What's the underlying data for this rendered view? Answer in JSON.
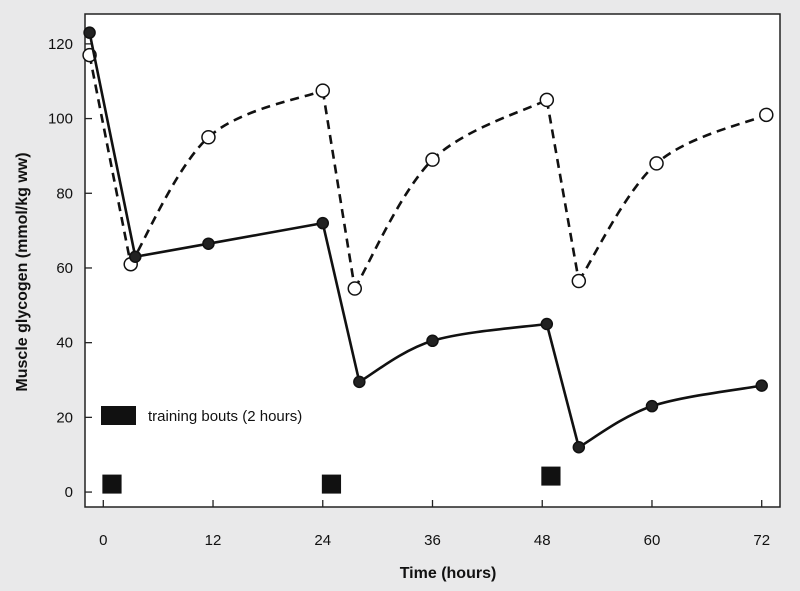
{
  "chart_data": {
    "type": "line",
    "xlabel": "Time (hours)",
    "ylabel": "Muscle glycogen (mmol/kg ww)",
    "x_ticks": [
      0,
      12,
      24,
      36,
      48,
      60,
      72
    ],
    "y_ticks": [
      0,
      20,
      40,
      60,
      80,
      100,
      120
    ],
    "xlim": [
      -2,
      74
    ],
    "ylim": [
      -4,
      128
    ],
    "grid": false,
    "legend": {
      "label": "training bouts (2 hours)",
      "placement": "bottom-left"
    },
    "training_bouts": [
      {
        "start": 0,
        "end": 2
      },
      {
        "start": 24,
        "end": 26
      },
      {
        "start": 48,
        "end": 50
      }
    ],
    "series": [
      {
        "style": "solid-filled",
        "points": [
          {
            "x": -1.5,
            "y": 123
          },
          {
            "x": 3.5,
            "y": 63
          },
          {
            "x": 11.5,
            "y": 66.5
          },
          {
            "x": 24,
            "y": 72
          },
          {
            "x": 28,
            "y": 29.5
          },
          {
            "x": 36,
            "y": 40.5
          },
          {
            "x": 48.5,
            "y": 45
          },
          {
            "x": 52,
            "y": 12
          },
          {
            "x": 60,
            "y": 23
          },
          {
            "x": 72,
            "y": 28.5
          }
        ]
      },
      {
        "style": "dashed-open",
        "points": [
          {
            "x": -1.5,
            "y": 117
          },
          {
            "x": 3,
            "y": 61
          },
          {
            "x": 11.5,
            "y": 95
          },
          {
            "x": 24,
            "y": 107.5
          },
          {
            "x": 27.5,
            "y": 54.5
          },
          {
            "x": 36,
            "y": 89
          },
          {
            "x": 48.5,
            "y": 105
          },
          {
            "x": 52,
            "y": 56.5
          },
          {
            "x": 60.5,
            "y": 88
          },
          {
            "x": 72.5,
            "y": 101
          }
        ]
      }
    ]
  }
}
